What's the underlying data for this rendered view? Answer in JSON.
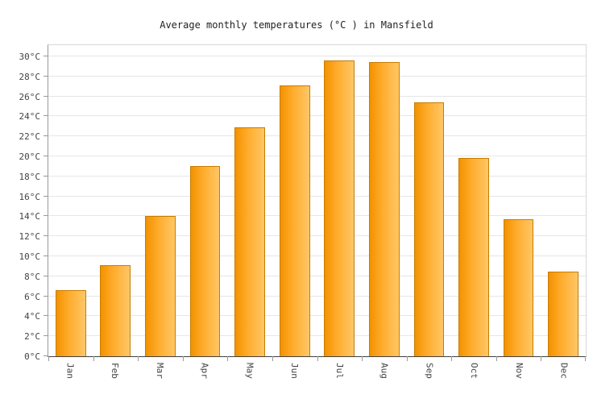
{
  "chart_data": {
    "type": "bar",
    "title": "Average monthly temperatures (°C ) in Mansfield",
    "categories": [
      "Jan",
      "Feb",
      "Mar",
      "Apr",
      "May",
      "Jun",
      "Jul",
      "Aug",
      "Sep",
      "Oct",
      "Nov",
      "Dec"
    ],
    "values": [
      6.6,
      9.1,
      14.0,
      19.0,
      22.9,
      27.1,
      29.6,
      29.4,
      25.4,
      19.8,
      13.7,
      8.5
    ],
    "xlabel": "",
    "ylabel": "",
    "ylim": [
      0,
      30
    ],
    "ytick_step": 2,
    "ytick_suffix": "°C",
    "grid": true,
    "legend": false,
    "colors": {
      "bar_gradient_left": "#F39200",
      "bar_gradient_mid": "#FFAD2E",
      "bar_gradient_right": "#FFC766",
      "bar_border": "#C97B00",
      "gridline": "#E6E6E6",
      "tick": "#999999",
      "axis_bottom": "#404040",
      "label_text": "#444444",
      "title_text": "#222222",
      "background": "#FFFFFF"
    }
  }
}
